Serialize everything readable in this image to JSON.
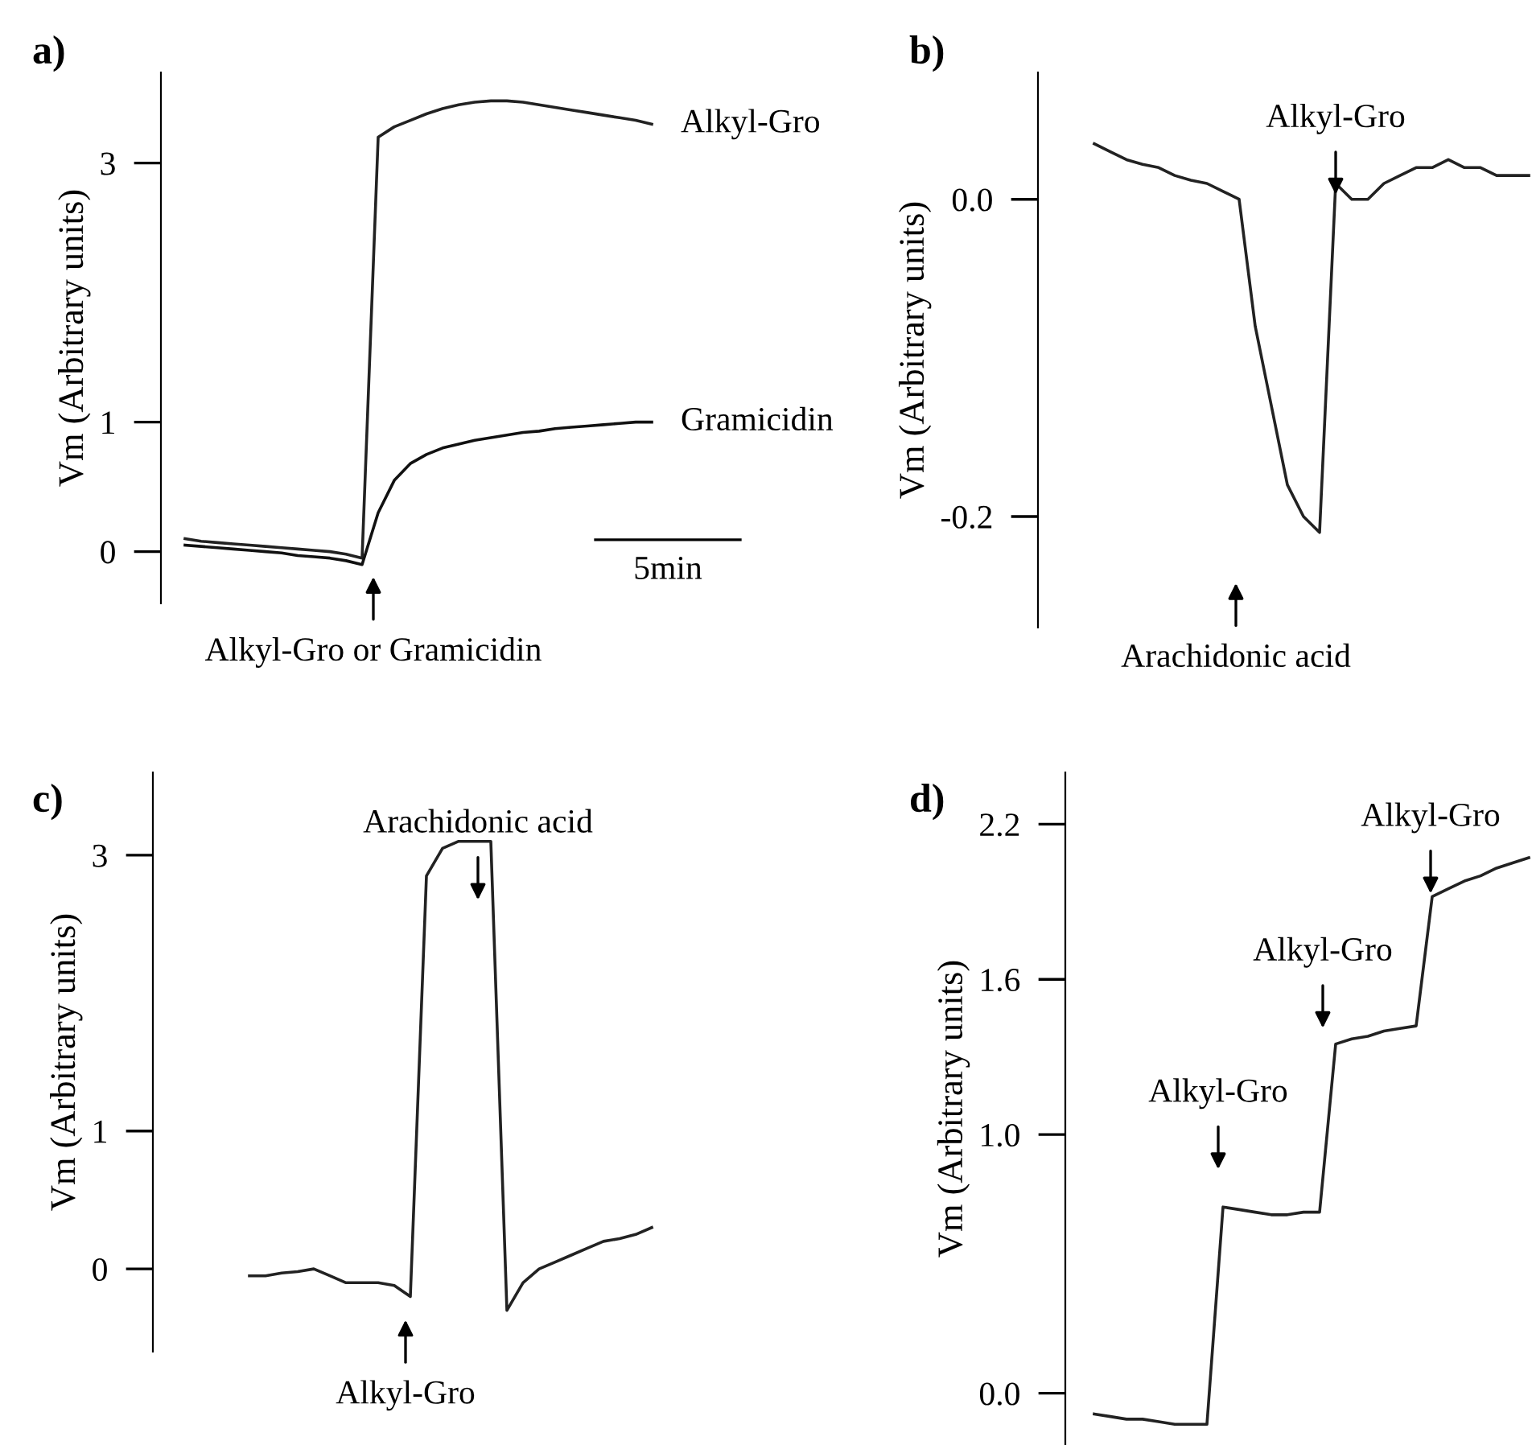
{
  "chart_data": [
    {
      "type": "line",
      "title": "a)",
      "ylabel": "Vm (Arbitrary units)",
      "categories": [
        null,
        null,
        null,
        null,
        null,
        null,
        null,
        null,
        null,
        null,
        null,
        null,
        null,
        null,
        null,
        null,
        null,
        null,
        null,
        null,
        null,
        null,
        null,
        null,
        null,
        null,
        null,
        null,
        null,
        null
      ],
      "series": [
        {
          "name": "Alkyl-Gro",
          "color": "#222222",
          "values": [
            0.1,
            0.08,
            0.07,
            0.06,
            0.05,
            0.04,
            0.03,
            0.02,
            0.01,
            0,
            -0.02,
            -0.05,
            3.2,
            3.28,
            3.33,
            3.38,
            3.42,
            3.45,
            3.47,
            3.48,
            3.48,
            3.47,
            3.45,
            3.43,
            3.41,
            3.39,
            3.37,
            3.35,
            3.33,
            3.3
          ]
        },
        {
          "name": "Gramicidin",
          "color": "#111111",
          "values": [
            0.05,
            0.04,
            0.03,
            0.02,
            0.01,
            0,
            -0.01,
            -0.03,
            -0.04,
            -0.05,
            -0.07,
            -0.1,
            0.3,
            0.55,
            0.68,
            0.75,
            0.8,
            0.83,
            0.86,
            0.88,
            0.9,
            0.92,
            0.93,
            0.95,
            0.96,
            0.97,
            0.98,
            0.99,
            1.0,
            1.0
          ]
        }
      ],
      "ylim": [
        -0.4,
        3.7
      ],
      "yticks": [
        0,
        1,
        3
      ],
      "grid": false,
      "legend": false,
      "marker": "none",
      "line_style": "solid",
      "tick_labels": "y",
      "annotations": [
        "Alkyl-Gro or Gramicidin",
        "5min"
      ]
    },
    {
      "type": "line",
      "title": "b)",
      "ylabel": "Vm (Arbitrary units)",
      "categories": [
        null,
        null,
        null,
        null,
        null,
        null,
        null,
        null,
        null,
        null,
        null,
        null,
        null,
        null,
        null,
        null,
        null,
        null,
        null,
        null,
        null,
        null,
        null,
        null,
        null,
        null,
        null,
        null
      ],
      "series": [
        {
          "color": "#222222",
          "values": [
            0.035,
            0.03,
            0.025,
            0.022,
            0.02,
            0.015,
            0.012,
            0.01,
            0.005,
            0.0,
            -0.08,
            -0.13,
            -0.18,
            -0.2,
            -0.21,
            0.01,
            0.0,
            0.0,
            0.01,
            0.015,
            0.02,
            0.02,
            0.025,
            0.02,
            0.02,
            0.015,
            0.015,
            0.015
          ]
        }
      ],
      "ylim": [
        -0.27,
        0.08
      ],
      "yticks": [
        {
          "value": 0,
          "label": "0.0"
        },
        {
          "value": -0.2,
          "label": "-0.2"
        }
      ],
      "grid": false,
      "legend": false,
      "marker": "none",
      "line_style": "solid",
      "tick_labels": "y",
      "annotations": [
        "Alkyl-Gro",
        "Arachidonic acid"
      ]
    },
    {
      "type": "line",
      "title": "c)",
      "ylabel": "Vm (Arbitrary units)",
      "categories": [
        null,
        null,
        null,
        null,
        null,
        null,
        null,
        null,
        null,
        null,
        null,
        null,
        null,
        null,
        null,
        null,
        null,
        null,
        null,
        null,
        null,
        null,
        null,
        null,
        null,
        null
      ],
      "series": [
        {
          "color": "#222222",
          "values": [
            -0.05,
            -0.05,
            -0.03,
            -0.02,
            0.0,
            -0.05,
            -0.1,
            -0.1,
            -0.1,
            -0.12,
            -0.2,
            2.85,
            3.05,
            3.1,
            3.1,
            3.1,
            -0.3,
            -0.1,
            0.0,
            0.05,
            0.1,
            0.15,
            0.2,
            0.22,
            0.25,
            0.3
          ]
        }
      ],
      "ylim": [
        -0.6,
        3.6
      ],
      "yticks": [
        0,
        1,
        3
      ],
      "grid": false,
      "legend": false,
      "marker": "none",
      "line_style": "solid",
      "tick_labels": "y",
      "annotations": [
        "Arachidonic acid",
        "Alkyl-Gro"
      ]
    },
    {
      "type": "line",
      "title": "d)",
      "ylabel": "Vm (Arbitrary units)",
      "categories": [
        null,
        null,
        null,
        null,
        null,
        null,
        null,
        null,
        null,
        null,
        null,
        null,
        null,
        null,
        null,
        null,
        null,
        null,
        null,
        null,
        null,
        null,
        null,
        null,
        null,
        null,
        null,
        null
      ],
      "series": [
        {
          "color": "#222222",
          "values": [
            -0.08,
            -0.09,
            -0.1,
            -0.1,
            -0.11,
            -0.12,
            -0.12,
            -0.12,
            0.72,
            0.71,
            0.7,
            0.69,
            0.69,
            0.7,
            0.7,
            1.35,
            1.37,
            1.38,
            1.4,
            1.41,
            1.42,
            1.92,
            1.95,
            1.98,
            2.0,
            2.03,
            2.05,
            2.07
          ]
        }
      ],
      "ylim": [
        -0.2,
        2.4
      ],
      "yticks": [
        {
          "value": 0,
          "label": "0.0"
        },
        {
          "value": 1,
          "label": "1.0"
        },
        1.6,
        2.2
      ],
      "grid": false,
      "legend": false,
      "marker": "none",
      "line_style": "solid",
      "tick_labels": "y",
      "annotations": [
        "Alkyl-Gro",
        "Alkyl-Gro",
        "Alkyl-Gro"
      ]
    }
  ]
}
